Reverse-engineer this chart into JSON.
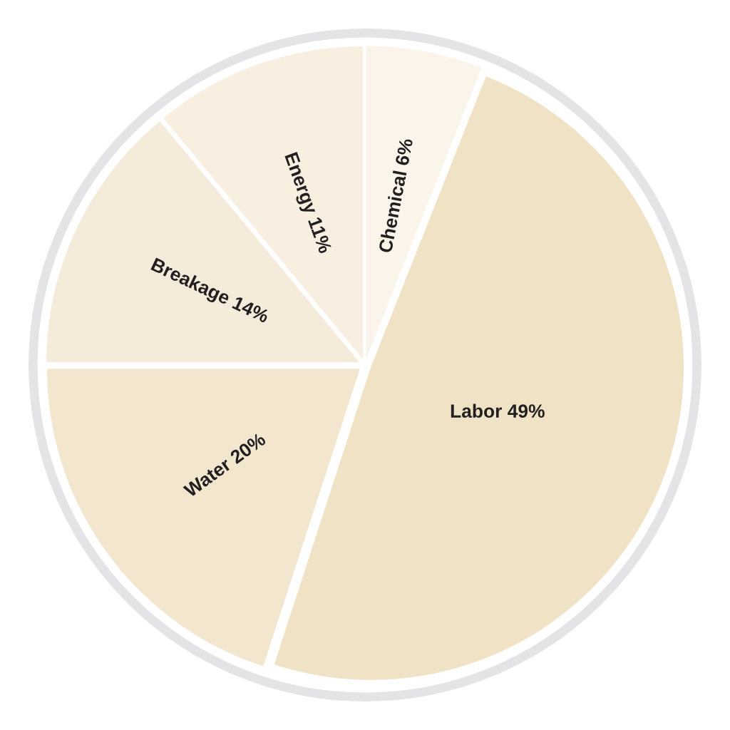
{
  "chart_data": {
    "type": "pie",
    "categories": [
      "Chemical",
      "Labor",
      "Water",
      "Breakage",
      "Energy"
    ],
    "values": [
      6,
      49,
      20,
      14,
      11
    ],
    "value_labels": [
      "6%",
      "49%",
      "20%",
      "14%",
      "11%"
    ],
    "colors": [
      "#faf4ea",
      "#f0e2c5",
      "#f3e6cf",
      "#f5ebda",
      "#f8efe1"
    ],
    "legend": false
  }
}
